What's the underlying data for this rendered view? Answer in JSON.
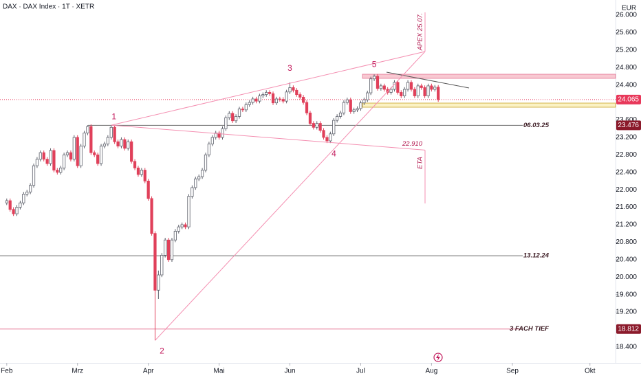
{
  "chart_data": {
    "type": "candlestick",
    "title": "DAX · DAX Index · 1T · XETR",
    "currency": "EUR",
    "xlim": [
      -2,
      180.6
    ],
    "ylim": [
      18036,
      26346
    ],
    "xticks": [
      {
        "value": 0,
        "label": "Feb"
      },
      {
        "value": 21,
        "label": "Mrz"
      },
      {
        "value": 42,
        "label": "Apr"
      },
      {
        "value": 63,
        "label": "Mai"
      },
      {
        "value": 84,
        "label": "Jun"
      },
      {
        "value": 105,
        "label": "Jul"
      },
      {
        "value": 126,
        "label": "Aug"
      },
      {
        "value": 150,
        "label": "Sep"
      },
      {
        "value": 173,
        "label": "Okt"
      }
    ],
    "yticks": [
      {
        "value": 26000,
        "label": "26.000"
      },
      {
        "value": 25600,
        "label": "25.600"
      },
      {
        "value": 25200,
        "label": "25.200"
      },
      {
        "value": 24800,
        "label": "24.800"
      },
      {
        "value": 24400,
        "label": "24.400"
      },
      {
        "value": 23600,
        "label": "23.600"
      },
      {
        "value": 23200,
        "label": "23.200"
      },
      {
        "value": 22800,
        "label": "22.800"
      },
      {
        "value": 22400,
        "label": "22.400"
      },
      {
        "value": 22000,
        "label": "22.000"
      },
      {
        "value": 21600,
        "label": "21.600"
      },
      {
        "value": 21200,
        "label": "21.200"
      },
      {
        "value": 20800,
        "label": "20.800"
      },
      {
        "value": 20400,
        "label": "20.400"
      },
      {
        "value": 20000,
        "label": "20.000"
      },
      {
        "value": 19600,
        "label": "19.600"
      },
      {
        "value": 19200,
        "label": "19.200"
      },
      {
        "value": 18400,
        "label": "18.400"
      }
    ],
    "series": [
      {
        "up_color": "#ffffff",
        "down_color": "#e0405a",
        "ohlc": [
          [
            21700,
            21800,
            21650,
            21750
          ],
          [
            21750,
            21800,
            21500,
            21550
          ],
          [
            21550,
            21600,
            21400,
            21450
          ],
          [
            21450,
            21650,
            21400,
            21600
          ],
          [
            21600,
            21750,
            21550,
            21700
          ],
          [
            21700,
            21950,
            21650,
            21900
          ],
          [
            21900,
            22000,
            21850,
            21950
          ],
          [
            21950,
            22150,
            21900,
            22100
          ],
          [
            22100,
            22600,
            22050,
            22550
          ],
          [
            22550,
            22750,
            22500,
            22700
          ],
          [
            22700,
            22900,
            22650,
            22850
          ],
          [
            22850,
            22900,
            22650,
            22700
          ],
          [
            22700,
            22750,
            22550,
            22600
          ],
          [
            22600,
            22950,
            22550,
            22900
          ],
          [
            22900,
            22950,
            22400,
            22450
          ],
          [
            22450,
            22500,
            22350,
            22400
          ],
          [
            22400,
            22550,
            22350,
            22500
          ],
          [
            22500,
            22850,
            22450,
            22800
          ],
          [
            22800,
            22900,
            22750,
            22850
          ],
          [
            22850,
            22900,
            22650,
            22700
          ],
          [
            22700,
            23250,
            22650,
            23200
          ],
          [
            23200,
            23250,
            22500,
            22550
          ],
          [
            22550,
            23050,
            22500,
            23000
          ],
          [
            23000,
            23350,
            22950,
            23300
          ],
          [
            23300,
            23480,
            23250,
            23450
          ],
          [
            23450,
            23500,
            22800,
            22850
          ],
          [
            22850,
            22900,
            22750,
            22800
          ],
          [
            22800,
            22850,
            22550,
            22600
          ],
          [
            22600,
            23050,
            22550,
            23000
          ],
          [
            23000,
            23100,
            22950,
            23050
          ],
          [
            23050,
            23250,
            23000,
            23200
          ],
          [
            23200,
            23480,
            23150,
            23430
          ],
          [
            23430,
            23480,
            23050,
            23100
          ],
          [
            23100,
            23150,
            22950,
            23000
          ],
          [
            23000,
            23200,
            22950,
            23150
          ],
          [
            23150,
            23200,
            22900,
            22950
          ],
          [
            22950,
            23150,
            22900,
            23100
          ],
          [
            23100,
            23150,
            22600,
            22650
          ],
          [
            22650,
            22700,
            22450,
            22500
          ],
          [
            22500,
            22550,
            22300,
            22350
          ],
          [
            22350,
            22500,
            22300,
            22450
          ],
          [
            22450,
            22500,
            22150,
            22200
          ],
          [
            22200,
            22250,
            21750,
            21800
          ],
          [
            21800,
            21850,
            20950,
            21000
          ],
          [
            21000,
            21050,
            18550,
            19700
          ],
          [
            19700,
            20150,
            19500,
            20050
          ],
          [
            20050,
            20550,
            20000,
            20500
          ],
          [
            20500,
            20900,
            20450,
            20850
          ],
          [
            20850,
            20900,
            20350,
            20400
          ],
          [
            20400,
            20900,
            20350,
            20850
          ],
          [
            20850,
            21100,
            20800,
            21050
          ],
          [
            21050,
            21200,
            21000,
            21150
          ],
          [
            21150,
            21250,
            21100,
            21200
          ],
          [
            21200,
            21250,
            21100,
            21150
          ],
          [
            21150,
            21900,
            21100,
            21850
          ],
          [
            21850,
            22100,
            21800,
            22050
          ],
          [
            22050,
            22300,
            22000,
            22250
          ],
          [
            22250,
            22350,
            22200,
            22300
          ],
          [
            22300,
            22500,
            22250,
            22450
          ],
          [
            22450,
            22850,
            22400,
            22800
          ],
          [
            22800,
            23100,
            22750,
            23050
          ],
          [
            23050,
            23250,
            23000,
            23200
          ],
          [
            23200,
            23350,
            23150,
            23300
          ],
          [
            23300,
            23350,
            23150,
            23200
          ],
          [
            23200,
            23450,
            23150,
            23400
          ],
          [
            23400,
            23700,
            23350,
            23650
          ],
          [
            23650,
            23800,
            23600,
            23750
          ],
          [
            23750,
            23800,
            23530,
            23580
          ],
          [
            23580,
            23730,
            23530,
            23680
          ],
          [
            23680,
            23900,
            23630,
            23850
          ],
          [
            23850,
            23900,
            23780,
            23830
          ],
          [
            23830,
            24000,
            23780,
            23950
          ],
          [
            23950,
            24050,
            23900,
            24000
          ],
          [
            24000,
            24130,
            23950,
            24080
          ],
          [
            24080,
            24130,
            23980,
            24030
          ],
          [
            24030,
            24200,
            23980,
            24150
          ],
          [
            24150,
            24230,
            24100,
            24180
          ],
          [
            24180,
            24280,
            24130,
            24230
          ],
          [
            24230,
            24280,
            24150,
            24200
          ],
          [
            24200,
            24250,
            23940,
            23990
          ],
          [
            23990,
            24130,
            23940,
            24080
          ],
          [
            24080,
            24130,
            24020,
            24070
          ],
          [
            24070,
            24120,
            23980,
            24030
          ],
          [
            24030,
            24290,
            23980,
            24240
          ],
          [
            24240,
            24460,
            24190,
            24340
          ],
          [
            24340,
            24390,
            24230,
            24280
          ],
          [
            24280,
            24330,
            24130,
            24180
          ],
          [
            24180,
            24230,
            24070,
            24120
          ],
          [
            24120,
            24170,
            23950,
            24000
          ],
          [
            24000,
            24050,
            23710,
            23760
          ],
          [
            23760,
            23810,
            23470,
            23520
          ],
          [
            23520,
            23570,
            23380,
            23430
          ],
          [
            23430,
            23570,
            23380,
            23520
          ],
          [
            23520,
            23570,
            23310,
            23360
          ],
          [
            23360,
            23410,
            23150,
            23200
          ],
          [
            23200,
            23250,
            23070,
            23120
          ],
          [
            23120,
            23330,
            23070,
            23280
          ],
          [
            23280,
            23640,
            23230,
            23590
          ],
          [
            23590,
            23730,
            23540,
            23680
          ],
          [
            23680,
            23810,
            23630,
            23760
          ],
          [
            23760,
            24050,
            23710,
            24000
          ],
          [
            24000,
            24110,
            23950,
            24060
          ],
          [
            24060,
            24110,
            23740,
            23790
          ],
          [
            23790,
            23880,
            23740,
            23830
          ],
          [
            23830,
            23910,
            23780,
            23860
          ],
          [
            23860,
            24040,
            23810,
            23990
          ],
          [
            23990,
            24110,
            23940,
            24060
          ],
          [
            24060,
            24270,
            24010,
            24220
          ],
          [
            24220,
            24590,
            24170,
            24540
          ],
          [
            24540,
            24640,
            24490,
            24600
          ],
          [
            24600,
            24650,
            24270,
            24320
          ],
          [
            24320,
            24430,
            24270,
            24380
          ],
          [
            24380,
            24430,
            24250,
            24300
          ],
          [
            24300,
            24350,
            24180,
            24230
          ],
          [
            24230,
            24350,
            24180,
            24300
          ],
          [
            24300,
            24510,
            24250,
            24460
          ],
          [
            24460,
            24510,
            24180,
            24230
          ],
          [
            24230,
            24280,
            24100,
            24150
          ],
          [
            24150,
            24350,
            24100,
            24300
          ],
          [
            24300,
            24510,
            24250,
            24460
          ],
          [
            24460,
            24510,
            24250,
            24300
          ],
          [
            24300,
            24350,
            24100,
            24150
          ],
          [
            24150,
            24430,
            24100,
            24380
          ],
          [
            24380,
            24430,
            24290,
            24340
          ],
          [
            24340,
            24390,
            24100,
            24150
          ],
          [
            24150,
            24430,
            24100,
            24380
          ],
          [
            24380,
            24430,
            24250,
            24300
          ],
          [
            24300,
            24400,
            24250,
            24350
          ],
          [
            24350,
            24400,
            24015,
            24065
          ]
        ]
      }
    ],
    "last_price": {
      "value": 24065,
      "label": "24.065",
      "color": "#e8385a"
    },
    "levels": [
      {
        "text": "06.03.25",
        "value": 23476,
        "axis_label": "23.476",
        "color": "#6b6b6b",
        "box_color": "#8b1a2b"
      },
      {
        "text": "13.12.24",
        "value": 20490,
        "color": "#6b6b6b"
      },
      {
        "text": "3 FACH TIEF",
        "value": 18812,
        "axis_label": "18.812",
        "color": "#e57393",
        "box_color": "#8b1a2b"
      }
    ],
    "annotations": {
      "waves": [
        "1",
        "2",
        "3",
        "4",
        "5"
      ],
      "apex": "APEX 25.07.",
      "eta": "ETA",
      "target": {
        "value": 22910,
        "label": "22.910"
      }
    }
  }
}
